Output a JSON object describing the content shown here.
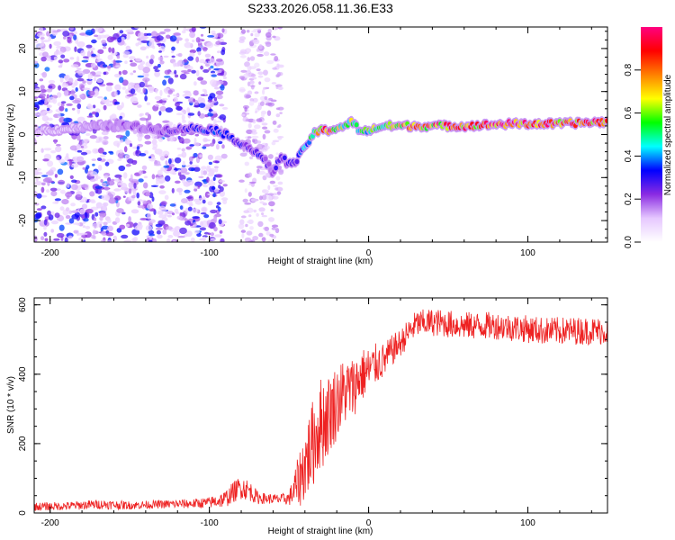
{
  "title": "S233.2026.058.11.36.E33",
  "colors": {
    "snr_line": "#ee2222",
    "colorbar_stops": [
      "#ffffff",
      "#e6c8ff",
      "#8a2be2",
      "#0000ff",
      "#00ffff",
      "#00ff00",
      "#ffff00",
      "#ff8000",
      "#ff0000",
      "#ff0080"
    ]
  },
  "chart_data": [
    {
      "type": "heatmap",
      "name": "spectrogram",
      "title": "S233.2026.058.11.36.E33",
      "xlabel": "Height of straight line (km)",
      "ylabel": "Frequency (Hz)",
      "xlim": [
        -210,
        150
      ],
      "ylim": [
        -25,
        25
      ],
      "xticks": [
        -200,
        -100,
        0,
        100
      ],
      "yticks": [
        -20,
        -10,
        0,
        10,
        20
      ],
      "grid": false,
      "colorbar": {
        "label": "Normalized spectral amplitude",
        "range": [
          0,
          1
        ],
        "ticks": [
          "0.0",
          "0.2",
          "0.4",
          "0.6",
          "0.8"
        ]
      },
      "ridge": {
        "x": [
          -200,
          -170,
          -150,
          -130,
          -110,
          -95,
          -85,
          -75,
          -65,
          -60,
          -55,
          -50,
          -45,
          -40,
          -35,
          -30,
          -25,
          -15,
          -10,
          -5,
          0,
          10,
          30,
          60,
          90,
          120,
          150
        ],
        "y": [
          1,
          2,
          2,
          1,
          1.5,
          1,
          -1,
          -3,
          -6,
          -9,
          -5,
          -7,
          -6,
          -3,
          0,
          1,
          1,
          2,
          3,
          0.5,
          1,
          2,
          2,
          2,
          2.5,
          2.5,
          3
        ],
        "peak_amplitude": [
          0.05,
          0.15,
          0.2,
          0.2,
          0.3,
          0.35,
          0.3,
          0.3,
          0.25,
          0.2,
          0.35,
          0.25,
          0.3,
          0.4,
          0.55,
          0.8,
          0.85,
          0.5,
          0.6,
          0.5,
          0.55,
          0.65,
          0.75,
          0.8,
          0.9,
          0.85,
          0.8
        ]
      },
      "noise_region_km": [
        -210,
        -90
      ],
      "noise_stripe_km": [
        -80,
        -55
      ]
    },
    {
      "type": "line",
      "name": "snr",
      "title": "",
      "xlabel": "Height of straight line (km)",
      "ylabel": "SNR (10 * v/v)",
      "xlim": [
        -210,
        150
      ],
      "ylim": [
        0,
        620
      ],
      "xticks": [
        -200,
        -100,
        0,
        100
      ],
      "yticks": [
        0,
        200,
        400,
        600
      ],
      "grid": false,
      "series": [
        {
          "name": "SNR",
          "x": [
            -210,
            -190,
            -170,
            -150,
            -130,
            -110,
            -100,
            -90,
            -85,
            -80,
            -75,
            -70,
            -65,
            -60,
            -55,
            -50,
            -45,
            -40,
            -35,
            -32,
            -30,
            -25,
            -20,
            -15,
            -10,
            -5,
            0,
            5,
            10,
            15,
            20,
            25,
            30,
            40,
            50,
            60,
            70,
            80,
            90,
            100,
            110,
            120,
            130,
            140,
            150
          ],
          "values": [
            18,
            20,
            25,
            22,
            25,
            27,
            30,
            40,
            60,
            75,
            65,
            45,
            42,
            40,
            40,
            42,
            80,
            140,
            200,
            240,
            255,
            285,
            320,
            350,
            360,
            395,
            410,
            430,
            440,
            470,
            490,
            520,
            545,
            550,
            545,
            540,
            540,
            540,
            535,
            530,
            525,
            525,
            525,
            525,
            525
          ],
          "noise_amplitude": [
            12,
            12,
            14,
            12,
            12,
            14,
            16,
            25,
            30,
            35,
            30,
            20,
            15,
            15,
            15,
            20,
            70,
            110,
            130,
            130,
            140,
            120,
            110,
            100,
            90,
            80,
            70,
            60,
            50,
            45,
            40,
            40,
            40,
            40,
            40,
            40,
            40,
            40,
            40,
            40,
            40,
            40,
            40,
            40,
            40
          ]
        }
      ]
    }
  ]
}
